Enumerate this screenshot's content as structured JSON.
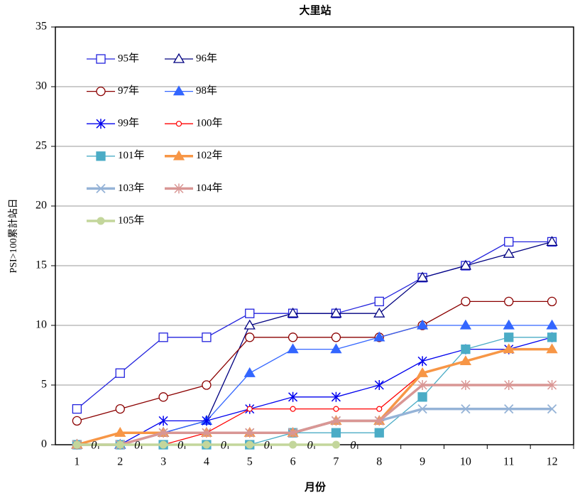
{
  "chart_data": {
    "type": "line",
    "title": "大里站",
    "x_label": "月份",
    "y_label": "PSI>100累計站日",
    "categories": [
      "1",
      "2",
      "3",
      "4",
      "5",
      "6",
      "7",
      "8",
      "9",
      "10",
      "11",
      "12"
    ],
    "ylim": [
      0,
      35
    ],
    "yticks": [
      0,
      5,
      10,
      15,
      20,
      25,
      30,
      35
    ],
    "grid": true,
    "legend": "upper left",
    "series": [
      {
        "name": "95年",
        "color": "#2222dd",
        "marker": "square-open",
        "width": 1.3,
        "values": [
          3,
          6,
          9,
          9,
          11,
          11,
          11,
          12,
          14,
          15,
          17,
          17
        ]
      },
      {
        "name": "96年",
        "color": "#000080",
        "marker": "triangle-open",
        "width": 1.3,
        "values": [
          0,
          0,
          1,
          2,
          10,
          11,
          11,
          11,
          14,
          15,
          16,
          17
        ]
      },
      {
        "name": "97年",
        "color": "#8b0000",
        "marker": "circle-open",
        "width": 1.3,
        "values": [
          2,
          3,
          4,
          5,
          9,
          9,
          9,
          9,
          10,
          12,
          12,
          12
        ]
      },
      {
        "name": "98年",
        "color": "#3366ff",
        "marker": "triangle-filled",
        "width": 1.3,
        "values": [
          0,
          0,
          1,
          2,
          6,
          8,
          8,
          9,
          10,
          10,
          10,
          10
        ]
      },
      {
        "name": "99年",
        "color": "#0000ee",
        "marker": "star",
        "width": 1.3,
        "values": [
          0,
          0,
          2,
          2,
          3,
          4,
          4,
          5,
          7,
          8,
          8,
          9
        ]
      },
      {
        "name": "100年",
        "color": "#ff0000",
        "marker": "circle-small",
        "width": 1.3,
        "values": [
          0,
          0,
          0,
          1,
          3,
          3,
          3,
          3,
          6,
          7,
          8,
          8
        ]
      },
      {
        "name": "101年",
        "color": "#4bacc6",
        "marker": "square-filled",
        "width": 1.3,
        "values": [
          0,
          0,
          0,
          0,
          0,
          1,
          1,
          1,
          4,
          8,
          9,
          9
        ]
      },
      {
        "name": "102年",
        "color": "#f79646",
        "marker": "triangle-filled",
        "width": 3.5,
        "values": [
          0,
          1,
          1,
          1,
          1,
          1,
          2,
          2,
          6,
          7,
          8,
          8
        ]
      },
      {
        "name": "103年",
        "color": "#95b3d7",
        "marker": "x",
        "width": 3.5,
        "values": [
          0,
          0,
          1,
          1,
          1,
          1,
          2,
          2,
          3,
          3,
          3,
          3
        ]
      },
      {
        "name": "104年",
        "color": "#d99694",
        "marker": "asterisk",
        "width": 3.5,
        "values": [
          0,
          0,
          1,
          1,
          1,
          1,
          2,
          2,
          5,
          5,
          5,
          5
        ]
      },
      {
        "name": "105年",
        "color": "#c3d69b",
        "marker": "circle-filled",
        "width": 3.5,
        "show_values": true,
        "values": [
          0,
          0,
          0,
          0,
          0,
          0,
          0,
          null,
          null,
          null,
          null,
          null
        ]
      }
    ]
  }
}
